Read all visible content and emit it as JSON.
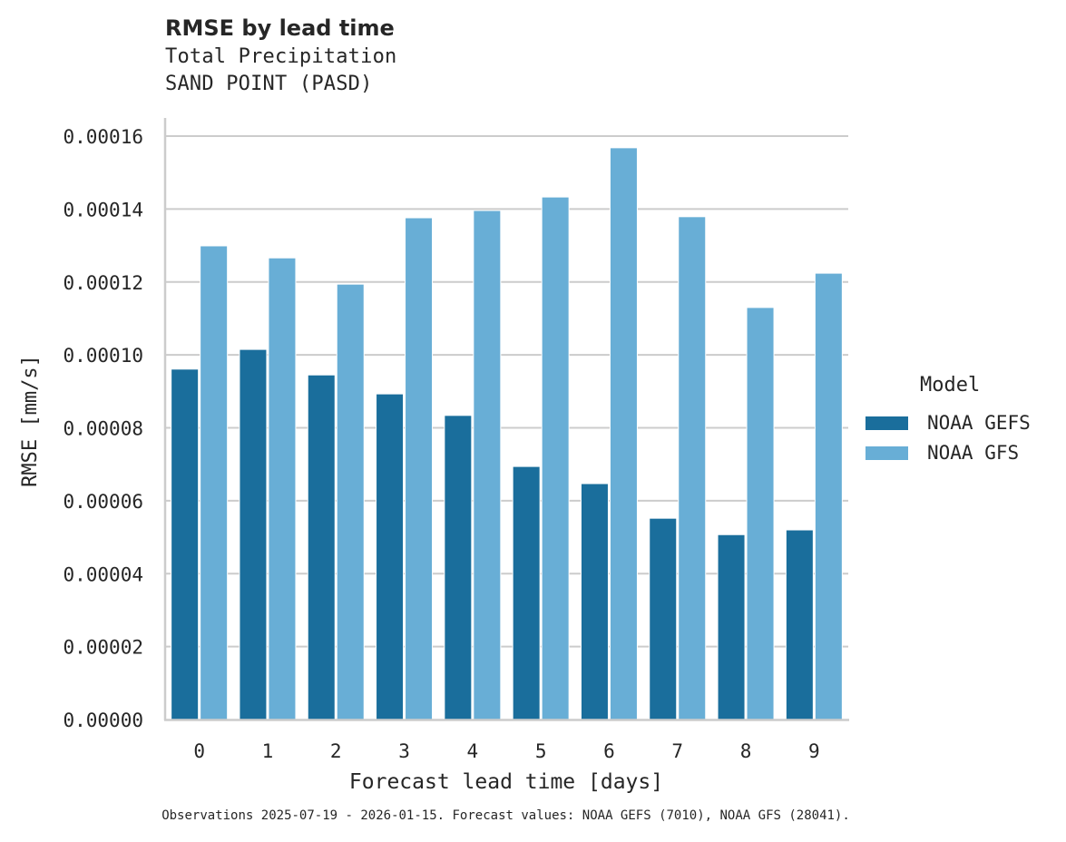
{
  "header": {
    "title": "RMSE by lead time",
    "subtitle_variable": "Total Precipitation",
    "subtitle_station": "SAND POINT (PASD)"
  },
  "legend": {
    "title": "Model",
    "items": [
      {
        "label": "NOAA GEFS",
        "color": "#1a6e9c"
      },
      {
        "label": "NOAA GFS",
        "color": "#68aed6"
      }
    ]
  },
  "footer": {
    "note": "Observations 2025-07-19 - 2026-01-15. Forecast values: NOAA GEFS (7010), NOAA GFS (28041)."
  },
  "chart_data": {
    "type": "bar",
    "title": "RMSE by lead time",
    "subtitle": "Total Precipitation / SAND POINT (PASD)",
    "xlabel": "Forecast lead time [days]",
    "ylabel": "RMSE [mm/s]",
    "categories": [
      "0",
      "1",
      "2",
      "3",
      "4",
      "5",
      "6",
      "7",
      "8",
      "9"
    ],
    "series": [
      {
        "name": "NOAA GEFS",
        "color": "#1a6e9c",
        "values": [
          9.61e-05,
          0.0001015,
          9.45e-05,
          8.93e-05,
          8.34e-05,
          6.94e-05,
          6.47e-05,
          5.52e-05,
          5.07e-05,
          5.2e-05
        ]
      },
      {
        "name": "NOAA GFS",
        "color": "#68aed6",
        "values": [
          0.0001299,
          0.0001266,
          0.0001194,
          0.0001376,
          0.0001396,
          0.0001433,
          0.0001568,
          0.0001379,
          0.000113,
          0.0001224
        ]
      }
    ],
    "yticks": [
      "0.00000",
      "0.00002",
      "0.00004",
      "0.00006",
      "0.00008",
      "0.00010",
      "0.00012",
      "0.00014",
      "0.00016"
    ],
    "ylim": [
      0,
      0.000165
    ],
    "grid": "horizontal",
    "legend_position": "right",
    "legend_title": "Model"
  }
}
